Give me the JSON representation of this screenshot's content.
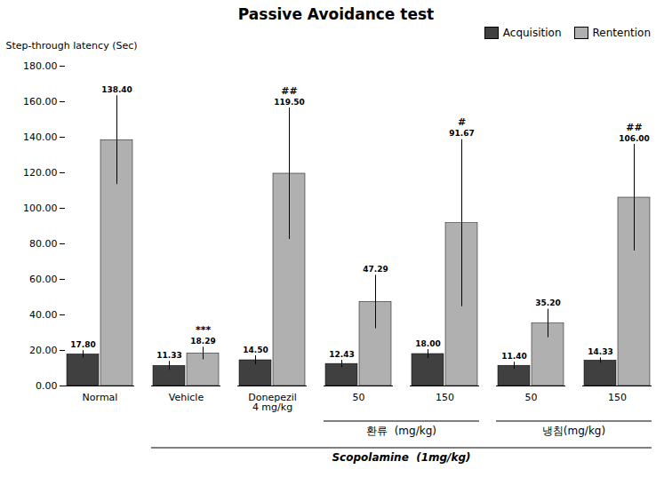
{
  "chart_data": {
    "type": "bar",
    "title": "Passive Avoidance test",
    "ylabel": "Step-through latency (Sec)",
    "categories": [
      "Normal",
      "Vehicle",
      "Donepezil\n4 mg/kg",
      "50",
      "150",
      "50",
      "150"
    ],
    "series": [
      {
        "name": "Acquisition",
        "color": "#404040",
        "values": [
          17.8,
          11.33,
          14.5,
          12.43,
          18.0,
          11.4,
          14.33
        ],
        "value_labels": [
          "17.80",
          "11.33",
          "14.50",
          "12.43",
          "18.00",
          "11.40",
          "14.33"
        ],
        "errors": [
          2.0,
          2.5,
          2.5,
          2.0,
          2.5,
          2.0,
          1.5
        ]
      },
      {
        "name": "Rentention",
        "color": "#b0b0b0",
        "values": [
          138.4,
          18.29,
          119.5,
          47.29,
          91.67,
          35.2,
          106.0
        ],
        "value_labels": [
          "138.40",
          "18.29",
          "119.50",
          "47.29",
          "91.67",
          "35.20",
          "106.00"
        ],
        "errors": [
          25.0,
          3.5,
          37.0,
          15.0,
          47.0,
          8.0,
          30.0
        ],
        "significance": [
          null,
          "***",
          "##",
          null,
          "#",
          null,
          "##"
        ]
      }
    ],
    "ylim": [
      0,
      180
    ],
    "yticks": [
      {
        "value": 0,
        "label": "0.00"
      },
      {
        "value": 20,
        "label": "20.00"
      },
      {
        "value": 40,
        "label": "40.00"
      },
      {
        "value": 60,
        "label": "60.00"
      },
      {
        "value": 80,
        "label": "80.00"
      },
      {
        "value": 100,
        "label": "100.00"
      },
      {
        "value": 120,
        "label": "120.00"
      },
      {
        "value": 140,
        "label": "140.00"
      },
      {
        "value": 160,
        "label": "160.00"
      },
      {
        "value": 180,
        "label": "180.00"
      }
    ],
    "grid": false,
    "legend": "top-right",
    "data_labels": true,
    "annotations": [
      {
        "text": "환류  (mg/kg)",
        "span": [
          3,
          4
        ]
      },
      {
        "text": "냉침(mg/kg)",
        "span": [
          5,
          6
        ]
      },
      {
        "text": "Scopolamine  (1mg/kg)",
        "span": [
          1,
          6
        ],
        "style": "bold-italic"
      }
    ]
  }
}
